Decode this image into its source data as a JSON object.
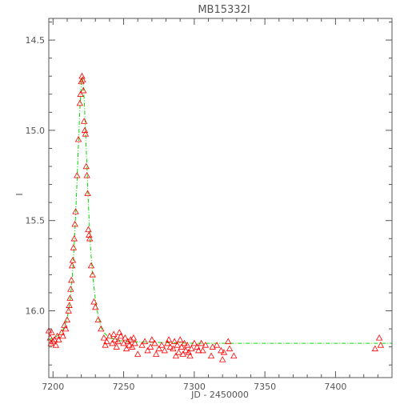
{
  "chart_data": {
    "type": "scatter",
    "title": "MB15332I",
    "xlabel": "JD - 2450000",
    "ylabel": "I",
    "xlim": [
      7197,
      7440
    ],
    "ylim": [
      16.37,
      14.38
    ],
    "y_inverted": true,
    "grid": false,
    "x_ticks": [
      7200,
      7250,
      7300,
      7350,
      7400
    ],
    "y_ticks": [
      14.5,
      15.0,
      15.5,
      16.0
    ],
    "x_tick_labels": [
      "7200",
      "7250",
      "7300",
      "7350",
      "7400"
    ],
    "y_tick_labels": [
      "14.5",
      "15.0",
      "15.5",
      "16.0"
    ],
    "colors": {
      "points": "#ff0000",
      "model": "#00dd00",
      "axes": "#555555"
    },
    "series": [
      {
        "type": "scatter",
        "marker": "triangle-open",
        "points": [
          [
            7197.0,
            16.11
          ],
          [
            7198.0,
            16.15
          ],
          [
            7198.5,
            16.18
          ],
          [
            7199.0,
            16.12
          ],
          [
            7200.0,
            16.17
          ],
          [
            7201.0,
            16.16
          ],
          [
            7202.0,
            16.19
          ],
          [
            7203.0,
            16.14
          ],
          [
            7204.0,
            16.16
          ],
          [
            7206.0,
            16.12
          ],
          [
            7207.0,
            16.14
          ],
          [
            7208.0,
            16.08
          ],
          [
            7209.0,
            16.1
          ],
          [
            7210.0,
            16.05
          ],
          [
            7211.0,
            16.0
          ],
          [
            7211.5,
            15.97
          ],
          [
            7212.0,
            15.93
          ],
          [
            7212.5,
            15.88
          ],
          [
            7213.0,
            15.83
          ],
          [
            7213.5,
            15.75
          ],
          [
            7214.0,
            15.72
          ],
          [
            7214.5,
            15.65
          ],
          [
            7215.0,
            15.6
          ],
          [
            7215.5,
            15.52
          ],
          [
            7216.0,
            15.45
          ],
          [
            7217.0,
            15.25
          ],
          [
            7218.0,
            15.05
          ],
          [
            7219.0,
            14.85
          ],
          [
            7219.5,
            14.8
          ],
          [
            7220.0,
            14.73
          ],
          [
            7220.5,
            14.7
          ],
          [
            7221.0,
            14.72
          ],
          [
            7221.5,
            14.78
          ],
          [
            7222.0,
            14.95
          ],
          [
            7222.5,
            15.0
          ],
          [
            7223.0,
            15.02
          ],
          [
            7223.5,
            15.2
          ],
          [
            7224.0,
            15.25
          ],
          [
            7224.5,
            15.35
          ],
          [
            7225.0,
            15.55
          ],
          [
            7225.5,
            15.58
          ],
          [
            7226.0,
            15.6
          ],
          [
            7227.0,
            15.75
          ],
          [
            7228.0,
            15.8
          ],
          [
            7229.0,
            15.95
          ],
          [
            7230.0,
            15.98
          ],
          [
            7232.0,
            16.05
          ],
          [
            7234.0,
            16.1
          ],
          [
            7236.0,
            16.15
          ],
          [
            7237.0,
            16.19
          ],
          [
            7238.0,
            16.17
          ],
          [
            7240.0,
            16.14
          ],
          [
            7242.0,
            16.18
          ],
          [
            7243.0,
            16.13
          ],
          [
            7244.0,
            16.16
          ],
          [
            7245.0,
            16.2
          ],
          [
            7246.0,
            16.17
          ],
          [
            7247.0,
            16.12
          ],
          [
            7248.0,
            16.14
          ],
          [
            7250.0,
            16.18
          ],
          [
            7251.0,
            16.15
          ],
          [
            7252.0,
            16.21
          ],
          [
            7253.0,
            16.17
          ],
          [
            7254.0,
            16.19
          ],
          [
            7255.0,
            16.16
          ],
          [
            7256.0,
            16.2
          ],
          [
            7257.0,
            16.15
          ],
          [
            7258.0,
            16.18
          ],
          [
            7260.0,
            16.24
          ],
          [
            7263.0,
            16.19
          ],
          [
            7265.0,
            16.17
          ],
          [
            7267.0,
            16.22
          ],
          [
            7269.0,
            16.2
          ],
          [
            7270.0,
            16.16
          ],
          [
            7272.0,
            16.18
          ],
          [
            7273.0,
            16.24
          ],
          [
            7275.0,
            16.21
          ],
          [
            7277.0,
            16.19
          ],
          [
            7279.0,
            16.22
          ],
          [
            7281.0,
            16.18
          ],
          [
            7282.0,
            16.16
          ],
          [
            7283.0,
            16.2
          ],
          [
            7285.0,
            16.21
          ],
          [
            7286.0,
            16.17
          ],
          [
            7287.0,
            16.25
          ],
          [
            7288.0,
            16.19
          ],
          [
            7289.0,
            16.23
          ],
          [
            7290.0,
            16.16
          ],
          [
            7291.0,
            16.2
          ],
          [
            7292.0,
            16.24
          ],
          [
            7293.0,
            16.18
          ],
          [
            7294.0,
            16.22
          ],
          [
            7295.0,
            16.19
          ],
          [
            7296.0,
            16.23
          ],
          [
            7297.0,
            16.25
          ],
          [
            7298.0,
            16.21
          ],
          [
            7300.0,
            16.18
          ],
          [
            7302.0,
            16.2
          ],
          [
            7303.0,
            16.22
          ],
          [
            7305.0,
            16.18
          ],
          [
            7306.0,
            16.22
          ],
          [
            7308.0,
            16.19
          ],
          [
            7312.0,
            16.25
          ],
          [
            7313.0,
            16.2
          ],
          [
            7316.0,
            16.19
          ],
          [
            7319.0,
            16.22
          ],
          [
            7320.0,
            16.27
          ],
          [
            7321.0,
            16.23
          ],
          [
            7324.0,
            16.17
          ],
          [
            7325.0,
            16.21
          ],
          [
            7328.0,
            16.25
          ],
          [
            7428.0,
            16.21
          ],
          [
            7431.0,
            16.15
          ],
          [
            7432.0,
            16.19
          ]
        ]
      },
      {
        "type": "line",
        "style": "dash-dot",
        "points": [
          [
            7197,
            16.16
          ],
          [
            7200,
            16.15
          ],
          [
            7203,
            16.14
          ],
          [
            7206,
            16.12
          ],
          [
            7208,
            16.09
          ],
          [
            7210,
            16.04
          ],
          [
            7212,
            15.95
          ],
          [
            7213,
            15.87
          ],
          [
            7214,
            15.77
          ],
          [
            7215,
            15.63
          ],
          [
            7216,
            15.47
          ],
          [
            7217,
            15.28
          ],
          [
            7218,
            15.08
          ],
          [
            7219,
            14.88
          ],
          [
            7220,
            14.74
          ],
          [
            7220.5,
            14.71
          ],
          [
            7221,
            14.72
          ],
          [
            7222,
            14.82
          ],
          [
            7223,
            15.0
          ],
          [
            7224,
            15.2
          ],
          [
            7225,
            15.4
          ],
          [
            7226,
            15.57
          ],
          [
            7227,
            15.7
          ],
          [
            7228,
            15.8
          ],
          [
            7230,
            15.94
          ],
          [
            7232,
            16.03
          ],
          [
            7234,
            16.09
          ],
          [
            7236,
            16.12
          ],
          [
            7240,
            16.15
          ],
          [
            7250,
            16.17
          ],
          [
            7300,
            16.18
          ],
          [
            7350,
            16.18
          ],
          [
            7400,
            16.18
          ],
          [
            7440,
            16.18
          ]
        ]
      }
    ]
  }
}
